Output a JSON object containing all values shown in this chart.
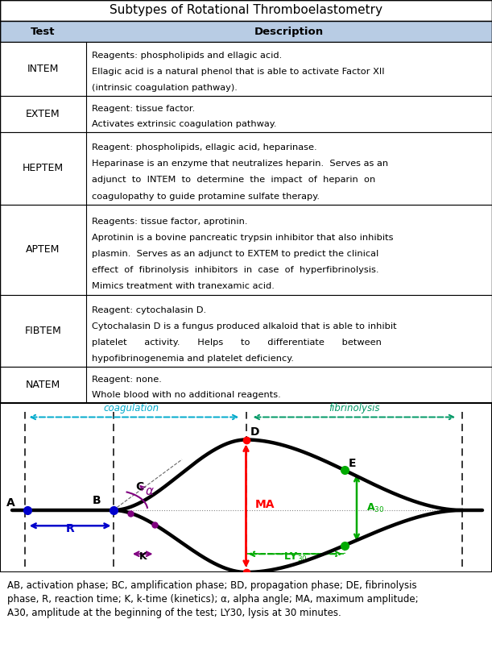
{
  "title": "Subtypes of Rotational Thromboelastometry",
  "header_bg": "#b8cce4",
  "title_fontsize": 11,
  "header_fontsize": 9.5,
  "body_fontsize": 8.2,
  "test_fontsize": 9,
  "col_split": 0.175,
  "rows": [
    {
      "test": "INTEM",
      "lines": [
        "Reagents: phospholipids and ellagic acid.",
        "Ellagic acid is a natural phenol that is able to activate Factor XII",
        "(intrinsic coagulation pathway)."
      ]
    },
    {
      "test": "EXTEM",
      "lines": [
        "Reagent: tissue factor.",
        "Activates extrinsic coagulation pathway."
      ]
    },
    {
      "test": "HEPTEM",
      "lines": [
        "Reagent: phospholipids, ellagic acid, heparinase.",
        "Heparinase is an enzyme that neutralizes heparin.  Serves as an",
        "adjunct  to  INTEM  to  determine  the  impact  of  heparin  on",
        "coagulopathy to guide protamine sulfate therapy."
      ]
    },
    {
      "test": "APTEM",
      "lines": [
        "Reagents: tissue factor, aprotinin.",
        "Aprotinin is a bovine pancreatic trypsin inhibitor that also inhibits",
        "plasmin.  Serves as an adjunct to EXTEM to predict the clinical",
        "effect  of  fibrinolysis  inhibitors  in  case  of  hyperfibrinolysis.",
        "Mimics treatment with tranexamic acid."
      ]
    },
    {
      "test": "FIBTEM",
      "lines": [
        "Reagent: cytochalasin D.",
        "Cytochalasin D is a fungus produced alkaloid that is able to inhibit",
        "platelet      activity.      Helps      to      differentiate      between",
        "hypofibrinogenemia and platelet deficiency."
      ]
    },
    {
      "test": "NATEM",
      "lines": [
        "Reagent: none.",
        "Whole blood with no additional reagents."
      ]
    }
  ],
  "caption": "AB, activation phase; BC, amplification phase; BD, propagation phase; DE, fibrinolysis\nphase, R, reaction time; K, k-time (kinetics); α, alpha angle; MA, maximum amplitude;\nA30, amplitude at the beginning of the test; LY30, lysis at 30 minutes.",
  "caption_fontsize": 8.5
}
